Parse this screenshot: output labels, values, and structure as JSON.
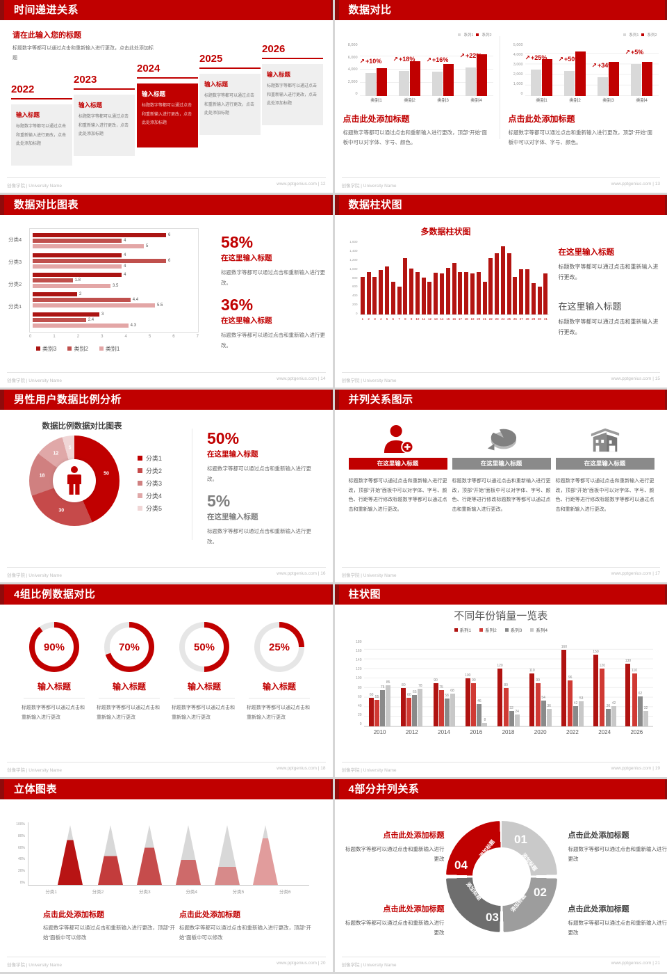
{
  "footer": {
    "brand": "创像学院 | University Name",
    "site": "www.pptgenius.com"
  },
  "colors": {
    "accent": "#c00000",
    "accent_dark": "#8f0b0b",
    "gray_bar": "#d9d9d9",
    "body_text": "#6a6a6a"
  },
  "slides": {
    "timeline": {
      "title": "时间递进关系",
      "footer_right": "www.pptgenius.com | 12",
      "intro_title": "请在此输入您的标题",
      "intro_body": "标题数字等都可以通过点击和重新输入进行更改，点击此处添加标题",
      "item_title": "输入标题",
      "item_body": "标题数字等都可以通过点击和重新输入进行更改，点击此处添加标题",
      "years": [
        "2022",
        "2023",
        "2024",
        "2025",
        "2026"
      ],
      "highlight_year": "2024"
    },
    "compare": {
      "title": "数据对比",
      "footer_right": "www.pptgenius.com | 13",
      "legend": [
        "系列1",
        "系列2"
      ],
      "caption_title": "点击此处添加标题",
      "caption_body": "标题数字等都可以通过点击和重新输入进行更改，顶部“开始”面板中可以对字体、字号、颜色。",
      "charts": [
        {
          "type": "bar",
          "ymax": 8000,
          "yticks": [
            "8,000",
            "6,000",
            "4,000",
            "2,000",
            "0"
          ],
          "categories": [
            "类别1",
            "类别2",
            "类别3",
            "类别4"
          ],
          "gray": [
            3500,
            3800,
            3700,
            4300
          ],
          "red": [
            4200,
            5300,
            4800,
            6300
          ],
          "pct": [
            "+10%",
            "+18%",
            "+16%",
            "+22%"
          ]
        },
        {
          "type": "bar",
          "ymax": 5000,
          "yticks": [
            "5,000",
            "4,000",
            "3,000",
            "2,000",
            "1,000",
            "0"
          ],
          "categories": [
            "类别1",
            "类别2",
            "类别3",
            "类别4"
          ],
          "gray": [
            2500,
            2350,
            1800,
            3050
          ],
          "red": [
            3500,
            4200,
            3200,
            3200
          ],
          "pct": [
            "+25%",
            "+50%",
            "+34%",
            "+5%"
          ]
        }
      ]
    },
    "hbar": {
      "title": "数据对比图表",
      "footer_right": "www.pptgenius.com | 14",
      "type": "bar-horizontal",
      "groups": [
        "分类4",
        "分类3",
        "分类2",
        "分类1",
        ""
      ],
      "series_values": [
        [
          6,
          4,
          5
        ],
        [
          4,
          6,
          4
        ],
        [
          4,
          1.8,
          3.5
        ],
        [
          2,
          4.4,
          5.5
        ],
        [
          3,
          2.4,
          4.3
        ]
      ],
      "xticks": [
        "0",
        "1",
        "2",
        "3",
        "4",
        "5",
        "6",
        "7"
      ],
      "xmax": 7,
      "legend": [
        "类别3",
        "类别2",
        "类别1"
      ],
      "stats": [
        {
          "pct": "58%",
          "title": "在这里输入标题",
          "body": "标题数字等都可以通过点击和重新输入进行更改。"
        },
        {
          "pct": "36%",
          "title": "在这里输入标题",
          "body": "标题数字等都可以通过点击和重新输入进行更改。"
        }
      ]
    },
    "columns": {
      "title": "数据柱状图",
      "footer_right": "www.pptgenius.com | 15",
      "chart_title": "多数据柱状图",
      "type": "bar",
      "ymax": 1600,
      "yticks": [
        "1,600",
        "1,400",
        "1,200",
        "1,000",
        "800",
        "600",
        "400",
        "200",
        "0"
      ],
      "values": [
        800,
        900,
        800,
        950,
        1020,
        700,
        600,
        1200,
        980,
        900,
        780,
        700,
        890,
        880,
        990,
        1100,
        900,
        900,
        880,
        900,
        700,
        1200,
        1300,
        1450,
        1300,
        800,
        960,
        960,
        660,
        600,
        870
      ],
      "blocks": [
        {
          "title": "在这里输入标题",
          "body": "标题数字等都可以通过点击和重新输入进行更改。"
        },
        {
          "title": "在这里输入标题",
          "body": "标题数字等都可以通过点击和重新输入进行更改。"
        }
      ]
    },
    "donut": {
      "title": "男性用户数据比例分析",
      "footer_right": "www.pptgenius.com | 16",
      "chart_title": "数据比例数据对比图表",
      "type": "pie",
      "values": [
        50,
        30,
        18,
        12,
        5
      ],
      "colors": [
        "#c00000",
        "#c64a4a",
        "#d08080",
        "#e0a8a8",
        "#f0d6d6"
      ],
      "legend": [
        "分类1",
        "分类2",
        "分类3",
        "分类4",
        "分类5"
      ],
      "stats": [
        {
          "pct": "50%",
          "title": "在这里输入标题",
          "body": "标题数字等都可以通过点击和重新输入进行更改。"
        },
        {
          "pct": "5%",
          "title": "在这里输入标题",
          "body": "标题数字等都可以通过点击和重新输入进行更改。"
        }
      ]
    },
    "parallel3": {
      "title": "并列关系图示",
      "footer_right": "www.pptgenius.com | 17",
      "item_title": "在这里输入标题",
      "body": "标题数字等都可以通过点击和重新输入进行更改，顶部“开始”面板中可以对字体、字号、颜色、行距等进行修改标题数字等都可以通过点击和重新输入进行更改。",
      "icons": [
        "person-plus",
        "pie-3d",
        "building"
      ]
    },
    "rings": {
      "title": "4组比例数据对比",
      "footer_right": "www.pptgenius.com | 18",
      "type": "pie",
      "items": [
        {
          "pct": 90,
          "label": "90%",
          "title": "输入标题",
          "body": "标题数字等都可以通过点击和重新输入进行更改"
        },
        {
          "pct": 70,
          "label": "70%",
          "title": "输入标题",
          "body": "标题数字等都可以通过点击和重新输入进行更改"
        },
        {
          "pct": 50,
          "label": "50%",
          "title": "输入标题",
          "body": "标题数字等都可以通过点击和重新输入进行更改"
        },
        {
          "pct": 25,
          "label": "25%",
          "title": "输入标题",
          "body": "标题数字等都可以通过点击和重新输入进行更改"
        }
      ]
    },
    "grouped": {
      "title": "柱状图",
      "footer_right": "www.pptgenius.com | 19",
      "chart_title": "不同年份销量一览表",
      "type": "bar",
      "ymax": 180,
      "yticks": [
        "180",
        "160",
        "140",
        "120",
        "100",
        "80",
        "60",
        "40",
        "20",
        "0"
      ],
      "categories": [
        "2010",
        "2012",
        "2014",
        "2016",
        "2018",
        "2020",
        "2022",
        "2024",
        "2026"
      ],
      "series": [
        {
          "name": "系列1",
          "color": "#b01311",
          "values": [
            60,
            80,
            90,
            100,
            120,
            110,
            160,
            150,
            130
          ]
        },
        {
          "name": "系列2",
          "color": "#d03a34",
          "values": [
            55,
            60,
            75,
            90,
            80,
            90,
            96,
            120,
            110
          ]
        },
        {
          "name": "系列3",
          "color": "#8a8a8a",
          "values": [
            75,
            65,
            58,
            46,
            32,
            54,
            42,
            36,
            62
          ]
        },
        {
          "name": "系列4",
          "color": "#c8c8c8",
          "values": [
            85,
            78,
            68,
            8,
            24,
            36,
            53,
            42,
            32
          ]
        }
      ]
    },
    "cones": {
      "title": "立体图表",
      "footer_right": "www.pptgenius.com | 20",
      "type": "bar",
      "categories": [
        "分类1",
        "分类2",
        "分类3",
        "分类4",
        "分类5",
        "分类6"
      ],
      "fill_pct": [
        75,
        48,
        62,
        42,
        30,
        78
      ],
      "colors": [
        "#b81414",
        "#c33c3c",
        "#c64c4c",
        "#ce6a6a",
        "#d78a8a",
        "#e19c9c"
      ],
      "yticks": [
        "100%",
        "80%",
        "60%",
        "40%",
        "20%",
        "0%"
      ],
      "captions": [
        {
          "title": "点击此处添加标题",
          "body": "标题数字等都可以通过点击和重新输入进行更改，顶部“开始”面板中可以修改"
        },
        {
          "title": "点击此处添加标题",
          "body": "标题数字等都可以通过点击和重新输入进行更改，顶部“开始”面板中可以修改"
        }
      ]
    },
    "quad": {
      "title": "4部分并列关系",
      "footer_right": "www.pptgenius.com | 21",
      "segments": [
        {
          "num": "01",
          "label": "添加标题",
          "color": "#c9c9c9"
        },
        {
          "num": "02",
          "label": "添加标题",
          "color": "#9d9d9d"
        },
        {
          "num": "03",
          "label": "添加标题",
          "color": "#6e6e6e"
        },
        {
          "num": "04",
          "label": "添加标题",
          "color": "#c00000"
        }
      ],
      "blocks": [
        {
          "title": "点击此处添加标题",
          "body": "标题数字等都可以通过点击和重新输入进行更改"
        },
        {
          "title": "点击此处添加标题",
          "body": "标题数字等都可以通过点击和重新输入进行更改"
        },
        {
          "title": "点击此处添加标题",
          "body": "标题数字等都可以通过点击和重新输入进行更改"
        },
        {
          "title": "点击此处添加标题",
          "body": "标题数字等都可以通过点击和重新输入进行更改"
        }
      ]
    }
  }
}
